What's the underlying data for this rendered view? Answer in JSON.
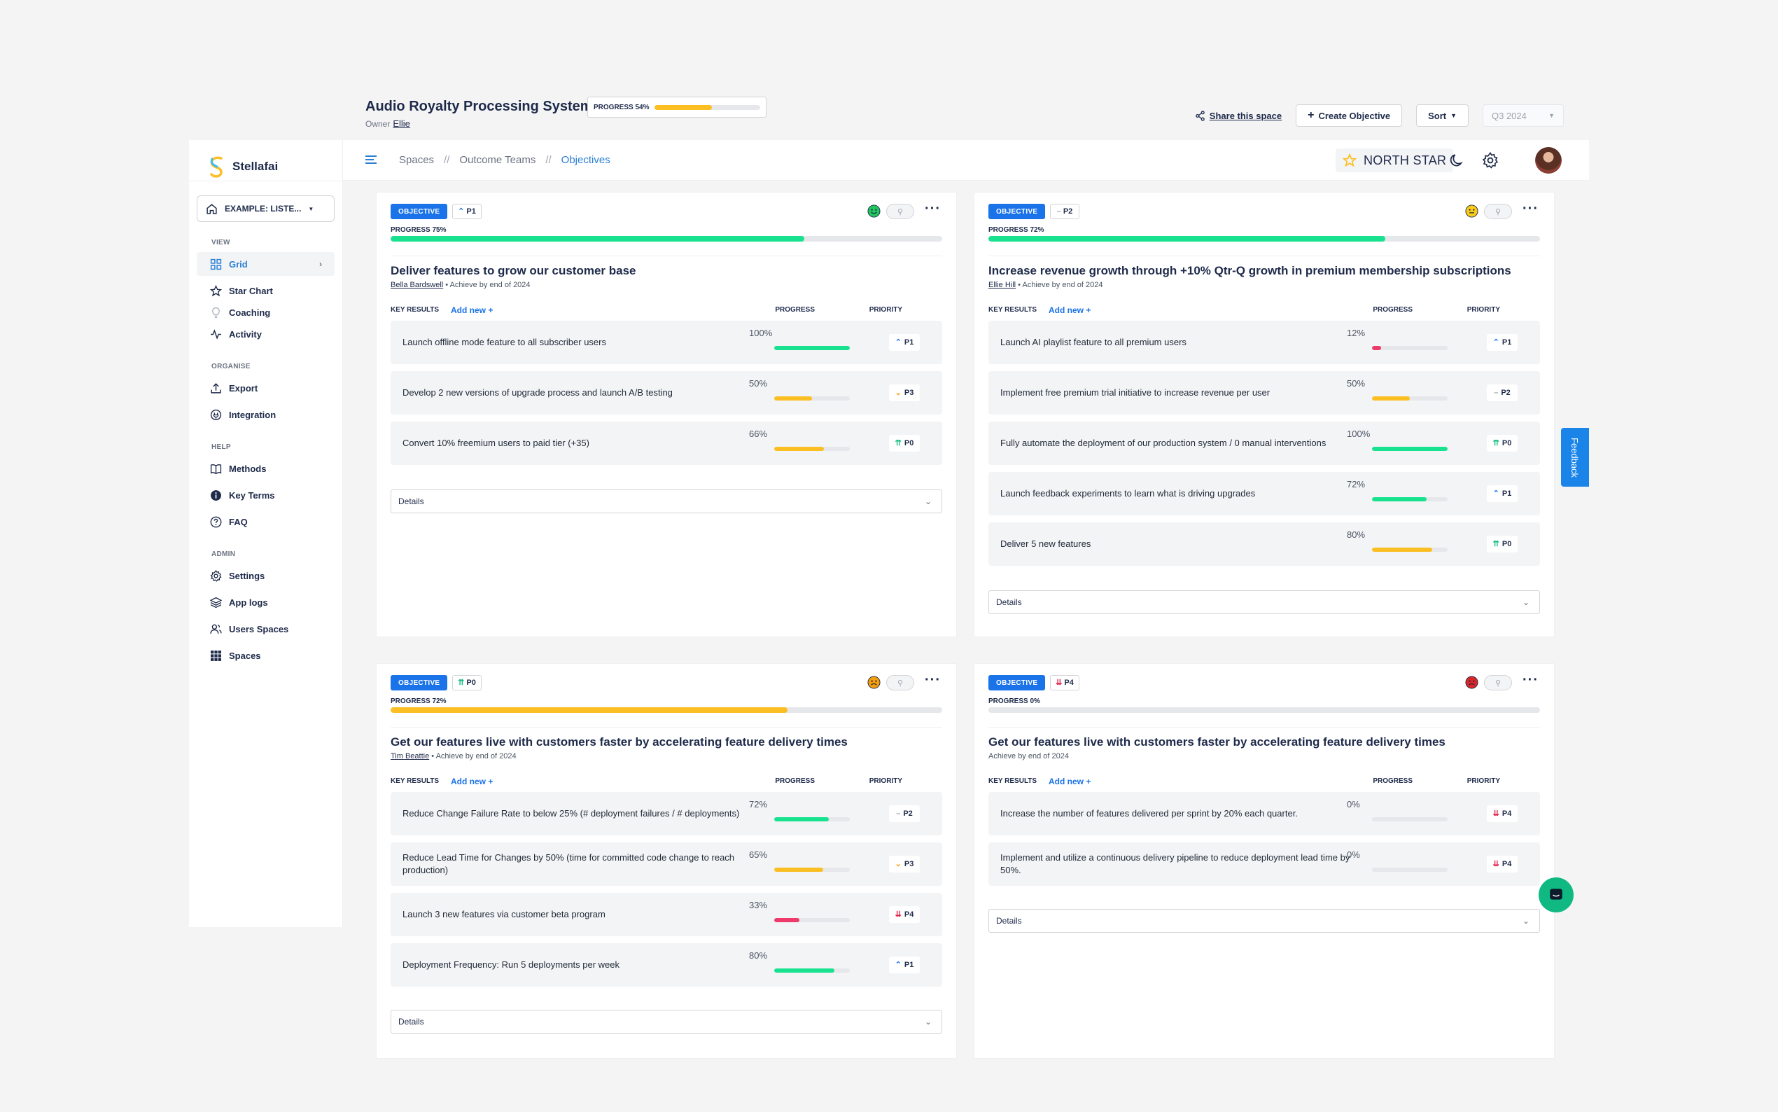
{
  "space": {
    "title": "Audio Royalty Processing System",
    "progress_label": "PROGRESS 54%",
    "progress": 54,
    "owner_label": "Owner",
    "owner_name": "Ellie"
  },
  "header_actions": {
    "share": "Share this space",
    "create": "Create Objective",
    "sort": "Sort",
    "quarter": "Q3 2024"
  },
  "sidebar": {
    "app_name": "Stellafai",
    "space_select": "EXAMPLE: LISTE...",
    "sections": {
      "view": "VIEW",
      "organise": "ORGANISE",
      "help": "HELP",
      "admin": "ADMIN"
    },
    "items": {
      "grid": "Grid",
      "star_chart": "Star Chart",
      "coaching": "Coaching",
      "activity": "Activity",
      "export": "Export",
      "integration": "Integration",
      "methods": "Methods",
      "key_terms": "Key Terms",
      "faq": "FAQ",
      "settings": "Settings",
      "app_logs": "App logs",
      "users_spaces": "Users Spaces",
      "spaces": "Spaces"
    }
  },
  "topbar": {
    "breadcrumb": [
      "Spaces",
      "//",
      "Outcome Teams",
      "//",
      "Objectives"
    ],
    "north_star": "NORTH STAR"
  },
  "labels": {
    "badge": "OBJECTIVE",
    "key_results": "KEY RESULTS",
    "add_new": "Add new +",
    "progress": "PROGRESS",
    "priority": "PRIORITY",
    "details": "Details",
    "feedback": "Feedback"
  },
  "colors": {
    "accent": "#1a73e8",
    "green": "#18e28f",
    "yellow": "#fbbf24",
    "red": "#ee3b6a"
  },
  "objectives": [
    {
      "priority": "P1",
      "priority_icon": "up",
      "mood": "happy",
      "progress_label": "PROGRESS 75%",
      "progress": 75,
      "progress_color": "#18e28f",
      "title": "Deliver features to grow our customer base",
      "owner": "Bella Bardswell",
      "meta": " • Achieve by end of 2024",
      "key_results": [
        {
          "text": "Launch offline mode feature to all subscriber users",
          "pct": "100%",
          "value": 100,
          "color": "#18e28f",
          "priority": "P1",
          "icon": "up"
        },
        {
          "text": "Develop 2 new versions of upgrade process and launch A/B testing",
          "pct": "50%",
          "value": 50,
          "color": "#fbbf24",
          "priority": "P3",
          "icon": "down"
        },
        {
          "text": "Convert 10% freemium users to paid tier (+35)",
          "pct": "66%",
          "value": 66,
          "color": "#fbbf24",
          "priority": "P0",
          "icon": "double-up"
        }
      ]
    },
    {
      "priority": "P2",
      "priority_icon": "flat",
      "mood": "neutral",
      "progress_label": "PROGRESS 72%",
      "progress": 72,
      "progress_color": "#18e28f",
      "title": "Increase revenue growth through +10% Qtr-Q growth in premium membership subscriptions",
      "owner": "Ellie Hill",
      "meta": " • Achieve by end of 2024",
      "key_results": [
        {
          "text": "Launch AI playlist feature to all premium users",
          "pct": "12%",
          "value": 12,
          "color": "#ee3b6a",
          "priority": "P1",
          "icon": "up"
        },
        {
          "text": "Implement free premium trial initiative to increase revenue per user",
          "pct": "50%",
          "value": 50,
          "color": "#fbbf24",
          "priority": "P2",
          "icon": "flat"
        },
        {
          "text": "Fully automate the deployment of our production system / 0 manual interventions",
          "pct": "100%",
          "value": 100,
          "color": "#18e28f",
          "priority": "P0",
          "icon": "double-up"
        },
        {
          "text": "Launch feedback experiments to learn what is driving upgrades",
          "pct": "72%",
          "value": 72,
          "color": "#18e28f",
          "priority": "P1",
          "icon": "up"
        },
        {
          "text": "Deliver 5 new features",
          "pct": "80%",
          "value": 80,
          "color": "#fbbf24",
          "priority": "P0",
          "icon": "double-up"
        }
      ]
    },
    {
      "priority": "P0",
      "priority_icon": "double-up",
      "mood": "sad",
      "progress_label": "PROGRESS 72%",
      "progress": 72,
      "progress_color": "#fbbf24",
      "title": "Get our features live with customers faster by accelerating feature delivery times",
      "owner": "Tim Beattie",
      "meta": " • Achieve by end of 2024",
      "key_results": [
        {
          "text": "Reduce Change Failure Rate to below 25% (# deployment failures / # deployments)",
          "pct": "72%",
          "value": 72,
          "color": "#18e28f",
          "priority": "P2",
          "icon": "flat"
        },
        {
          "text": "Reduce Lead Time for Changes by 50% (time for committed code change to reach production)",
          "pct": "65%",
          "value": 65,
          "color": "#fbbf24",
          "priority": "P3",
          "icon": "down"
        },
        {
          "text": "Launch 3 new features via customer beta program",
          "pct": "33%",
          "value": 33,
          "color": "#ee3b6a",
          "priority": "P4",
          "icon": "double-down"
        },
        {
          "text": "Deployment Frequency: Run 5 deployments per week",
          "pct": "80%",
          "value": 80,
          "color": "#18e28f",
          "priority": "P1",
          "icon": "up"
        }
      ]
    },
    {
      "priority": "P4",
      "priority_icon": "double-down",
      "mood": "angry",
      "progress_label": "PROGRESS 0%",
      "progress": 0,
      "progress_color": "#18e28f",
      "title": "Get our features live with customers faster by accelerating feature delivery times",
      "owner": "",
      "meta": "Achieve by end of 2024",
      "key_results": [
        {
          "text": "Increase the number of features delivered per sprint by 20% each quarter.",
          "pct": "0%",
          "value": 0,
          "color": "#18e28f",
          "priority": "P4",
          "icon": "double-down"
        },
        {
          "text": "Implement and utilize a continuous delivery pipeline to reduce deployment lead time by 50%.",
          "pct": "0%",
          "value": 0,
          "color": "#18e28f",
          "priority": "P4",
          "icon": "double-down"
        }
      ]
    }
  ]
}
